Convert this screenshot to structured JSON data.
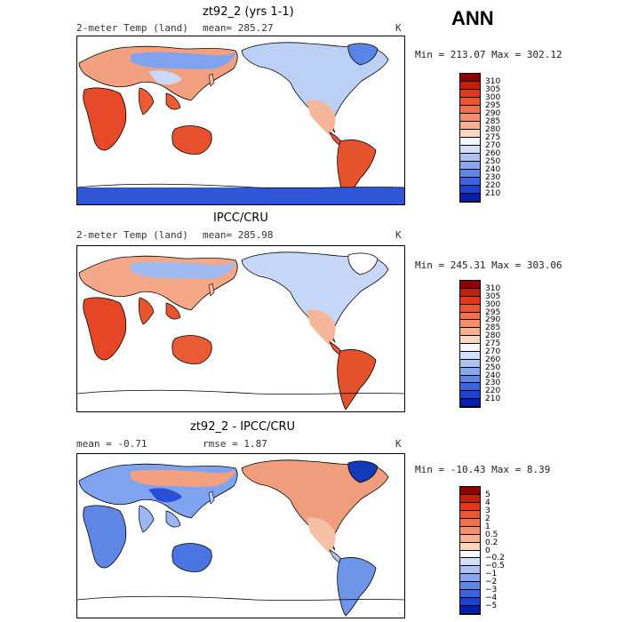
{
  "season": "ANN",
  "panels": [
    {
      "title": "zt92_2 (yrs 1-1)",
      "left_label": "2-meter Temp (land)",
      "mean_text": "mean= 285.27",
      "units": "K",
      "minmax": "Min = 213.07 Max = 302.12",
      "scale_labels": [
        "310",
        "305",
        "300",
        "295",
        "290",
        "285",
        "280",
        "275",
        "270",
        "260",
        "250",
        "240",
        "230",
        "220",
        "210"
      ],
      "scale_colors": [
        "#8b0000",
        "#c0200c",
        "#e03a18",
        "#ec5530",
        "#f2714d",
        "#f58e6c",
        "#f9b090",
        "#fcd6bd",
        "#f7f7ff",
        "#d3e0fb",
        "#adc4f3",
        "#88a8ec",
        "#5f86e5",
        "#3a63dd",
        "#1d41d0",
        "#051fa8"
      ],
      "has_antarctica": true
    },
    {
      "title": "IPCC/CRU",
      "left_label": "2-meter Temp (land)",
      "mean_text": "mean= 285.98",
      "units": "K",
      "minmax": "Min = 245.31 Max = 303.06",
      "scale_labels": [
        "310",
        "305",
        "300",
        "295",
        "290",
        "285",
        "280",
        "275",
        "270",
        "260",
        "250",
        "240",
        "230",
        "220",
        "210"
      ],
      "scale_colors": [
        "#8b0000",
        "#c0200c",
        "#e03a18",
        "#ec5530",
        "#f2714d",
        "#f58e6c",
        "#f9b090",
        "#fcd6bd",
        "#f7f7ff",
        "#d3e0fb",
        "#adc4f3",
        "#88a8ec",
        "#5f86e5",
        "#3a63dd",
        "#1d41d0",
        "#051fa8"
      ],
      "has_antarctica": false
    },
    {
      "title": "zt92_2 - IPCC/CRU",
      "left_label": "mean =   -0.71",
      "mean_text": "rmse =    1.87",
      "units": "K",
      "minmax": "Min = -10.43 Max =    8.39",
      "scale_labels": [
        "5",
        "4",
        "3",
        "2",
        "1",
        "0.5",
        "0.2",
        "0",
        "−0.2",
        "−0.5",
        "−1",
        "−2",
        "−3",
        "−4",
        "−5"
      ],
      "scale_colors": [
        "#8b0000",
        "#c0200c",
        "#e03a18",
        "#ec5530",
        "#f2714d",
        "#f58e6c",
        "#f9b090",
        "#fcd6bd",
        "#f7f7ff",
        "#d3e0fb",
        "#adc4f3",
        "#88a8ec",
        "#5f86e5",
        "#3a63dd",
        "#1d41d0",
        "#051fa8"
      ],
      "has_antarctica": false
    }
  ]
}
